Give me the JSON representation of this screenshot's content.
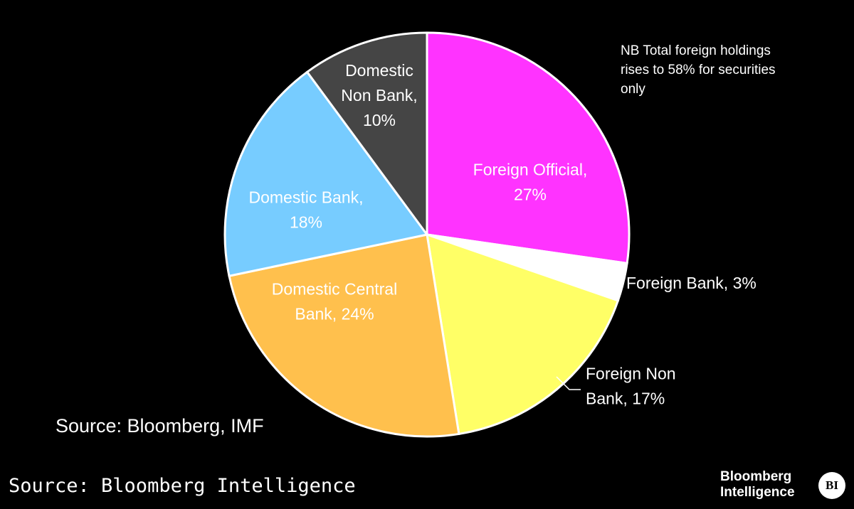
{
  "chart_data": {
    "type": "pie",
    "title": "",
    "slices": [
      {
        "label_lines": [
          "Foreign Official,",
          "27%"
        ],
        "value": 27,
        "color": "#ff33ff",
        "text_color": "#ffffff"
      },
      {
        "label_lines": [
          "Foreign Bank, 3%"
        ],
        "value": 3,
        "color": "#ffffff",
        "text_color": "#ffffff"
      },
      {
        "label_lines": [
          "Foreign Non",
          "Bank, 17%"
        ],
        "value": 17,
        "color": "#ffff66",
        "text_color": "#ffffff"
      },
      {
        "label_lines": [
          "Domestic Central",
          "Bank, 24%"
        ],
        "value": 24,
        "color": "#ffc04d",
        "text_color": "#ffffff"
      },
      {
        "label_lines": [
          "Domestic Bank,",
          "18%"
        ],
        "value": 18,
        "color": "#77ccff",
        "text_color": "#ffffff"
      },
      {
        "label_lines": [
          "Domestic",
          "Non Bank,",
          "10%"
        ],
        "value": 10,
        "color": "#454545",
        "text_color": "#ffffff"
      }
    ],
    "annotations": [
      "NB Total foreign holdings",
      "rises to 58% for securities",
      "only"
    ]
  },
  "source_chart": "Source: Bloomberg, IMF",
  "source_footer": "Source: Bloomberg Intelligence",
  "brand": {
    "line1": "Bloomberg",
    "line2": "Intelligence",
    "badge": "BI"
  }
}
